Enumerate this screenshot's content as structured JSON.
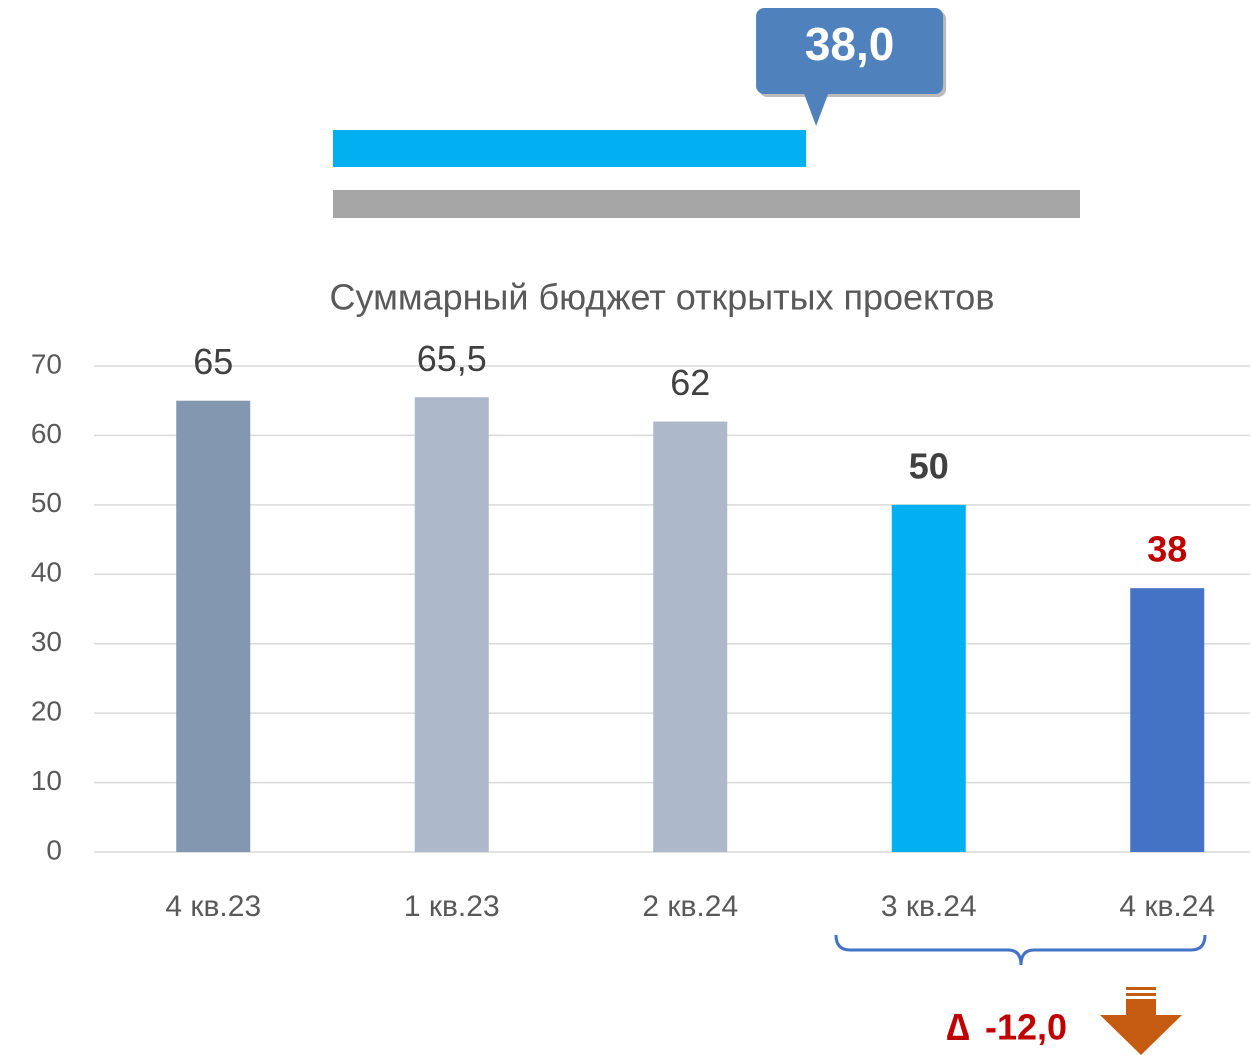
{
  "chart_data": [
    {
      "type": "progress",
      "value": 38,
      "value_label": "38,0",
      "xlim": [
        0,
        60
      ],
      "color": "#00b0f0",
      "track_color": "#a6a6a6",
      "callout_color": "#4f81bd"
    },
    {
      "type": "bar",
      "title": "Суммарный бюджет открытых проектов",
      "categories": [
        "4 кв.23",
        "1 кв.23",
        "2 кв.24",
        "3 кв.24",
        "4 кв.24"
      ],
      "values": [
        65,
        65.5,
        62,
        50,
        38
      ],
      "value_labels": [
        "65",
        "65,5",
        "62",
        "50",
        "38"
      ],
      "colors": [
        "#8497b0",
        "#adb9ca",
        "#adb9ca",
        "#00b0f0",
        "#4472c4"
      ],
      "value_label_colors": [
        "#404040",
        "#404040",
        "#404040",
        "#404040",
        "#c00000"
      ],
      "value_label_bold": [
        false,
        false,
        false,
        true,
        true
      ],
      "ylim": [
        0,
        70
      ],
      "yticks": [
        0,
        10,
        20,
        30,
        40,
        50,
        60,
        70
      ],
      "grid": true,
      "delta_symbol": "∆",
      "delta": "-12,0"
    }
  ]
}
